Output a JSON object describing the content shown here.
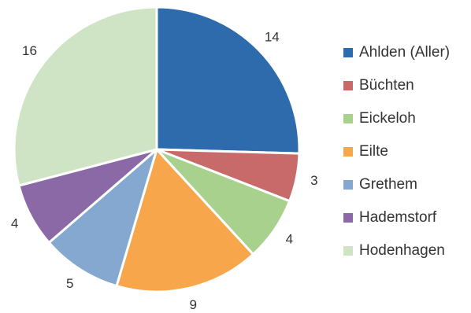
{
  "chart_data": {
    "type": "pie",
    "title": "",
    "legend_position": "right",
    "categories": [
      "Ahlden (Aller)",
      "Büchten",
      "Eickeloh",
      "Eilte",
      "Grethem",
      "Hademstorf",
      "Hodenhagen"
    ],
    "values": [
      14,
      3,
      4,
      9,
      5,
      4,
      16
    ],
    "colors": [
      "#2E6BAD",
      "#C96A6A",
      "#A9D18E",
      "#F8A64B",
      "#85A8D0",
      "#8B69A6",
      "#CFE4C5"
    ]
  }
}
